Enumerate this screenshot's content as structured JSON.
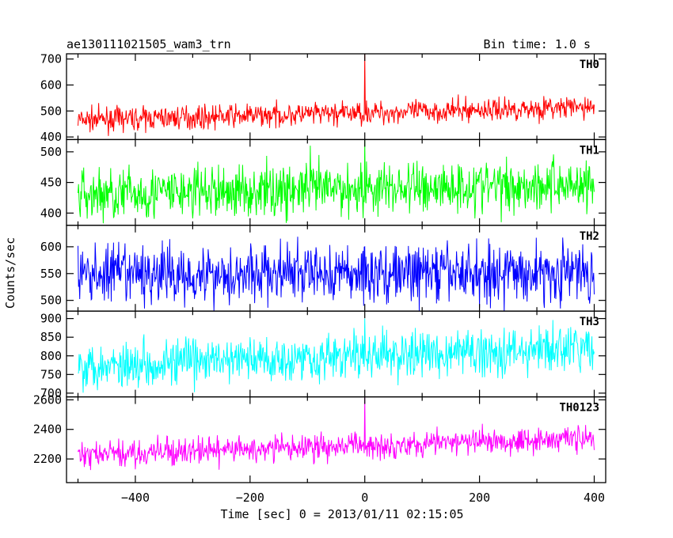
{
  "header": {
    "title": "ae130111021505_wam3_trn",
    "bin_time": "Bin time: 1.0 s"
  },
  "chart_data": {
    "type": "line",
    "xlabel": "Time [sec] 0 = 2013/01/11 02:15:05",
    "ylabel": "Counts/sec",
    "xlim": [
      -520,
      420
    ],
    "x_range": [
      -500,
      400
    ],
    "x_ticks": [
      -400,
      -200,
      0,
      200,
      400
    ],
    "x_tick_labels": [
      "−400",
      "−200",
      "0",
      "200",
      "400"
    ],
    "series": [
      {
        "name": "TH0",
        "color": "#ff0000",
        "ylim": [
          390,
          720
        ],
        "y_ticks": [
          400,
          500,
          600,
          700
        ],
        "y_tick_labels": [
          "400",
          "500",
          "600",
          "700"
        ],
        "base_start": 465,
        "base_end": 515,
        "noise": 22,
        "spikes": [
          {
            "x": 0,
            "y": 720
          }
        ]
      },
      {
        "name": "TH1",
        "color": "#00ff00",
        "ylim": [
          380,
          520
        ],
        "y_ticks": [
          400,
          450,
          500
        ],
        "y_tick_labels": [
          "400",
          "450",
          "500"
        ],
        "base_start": 430,
        "base_end": 448,
        "noise": 22,
        "spikes": [
          {
            "x": 0,
            "y": 520
          },
          {
            "x": -95,
            "y": 510
          }
        ]
      },
      {
        "name": "TH2",
        "color": "#0000ff",
        "ylim": [
          480,
          640
        ],
        "y_ticks": [
          500,
          550,
          600
        ],
        "y_tick_labels": [
          "500",
          "550",
          "600"
        ],
        "base_start": 548,
        "base_end": 552,
        "noise": 28,
        "spikes": [
          {
            "x": 0,
            "y": 600
          }
        ]
      },
      {
        "name": "TH3",
        "color": "#00ffff",
        "ylim": [
          690,
          920
        ],
        "y_ticks": [
          700,
          750,
          800,
          850,
          900
        ],
        "y_tick_labels": [
          "700",
          "750",
          "800",
          "850",
          "900"
        ],
        "base_start": 775,
        "base_end": 820,
        "noise": 32,
        "spikes": [
          {
            "x": 0,
            "y": 900
          }
        ]
      },
      {
        "name": "TH0123",
        "color": "#ff00ff",
        "ylim": [
          2040,
          2620
        ],
        "y_ticks": [
          2200,
          2400,
          2600
        ],
        "y_tick_labels": [
          "2200",
          "2400",
          "2600"
        ],
        "base_start": 2225,
        "base_end": 2345,
        "noise": 45,
        "spikes": [
          {
            "x": 0,
            "y": 2620
          }
        ]
      }
    ]
  }
}
